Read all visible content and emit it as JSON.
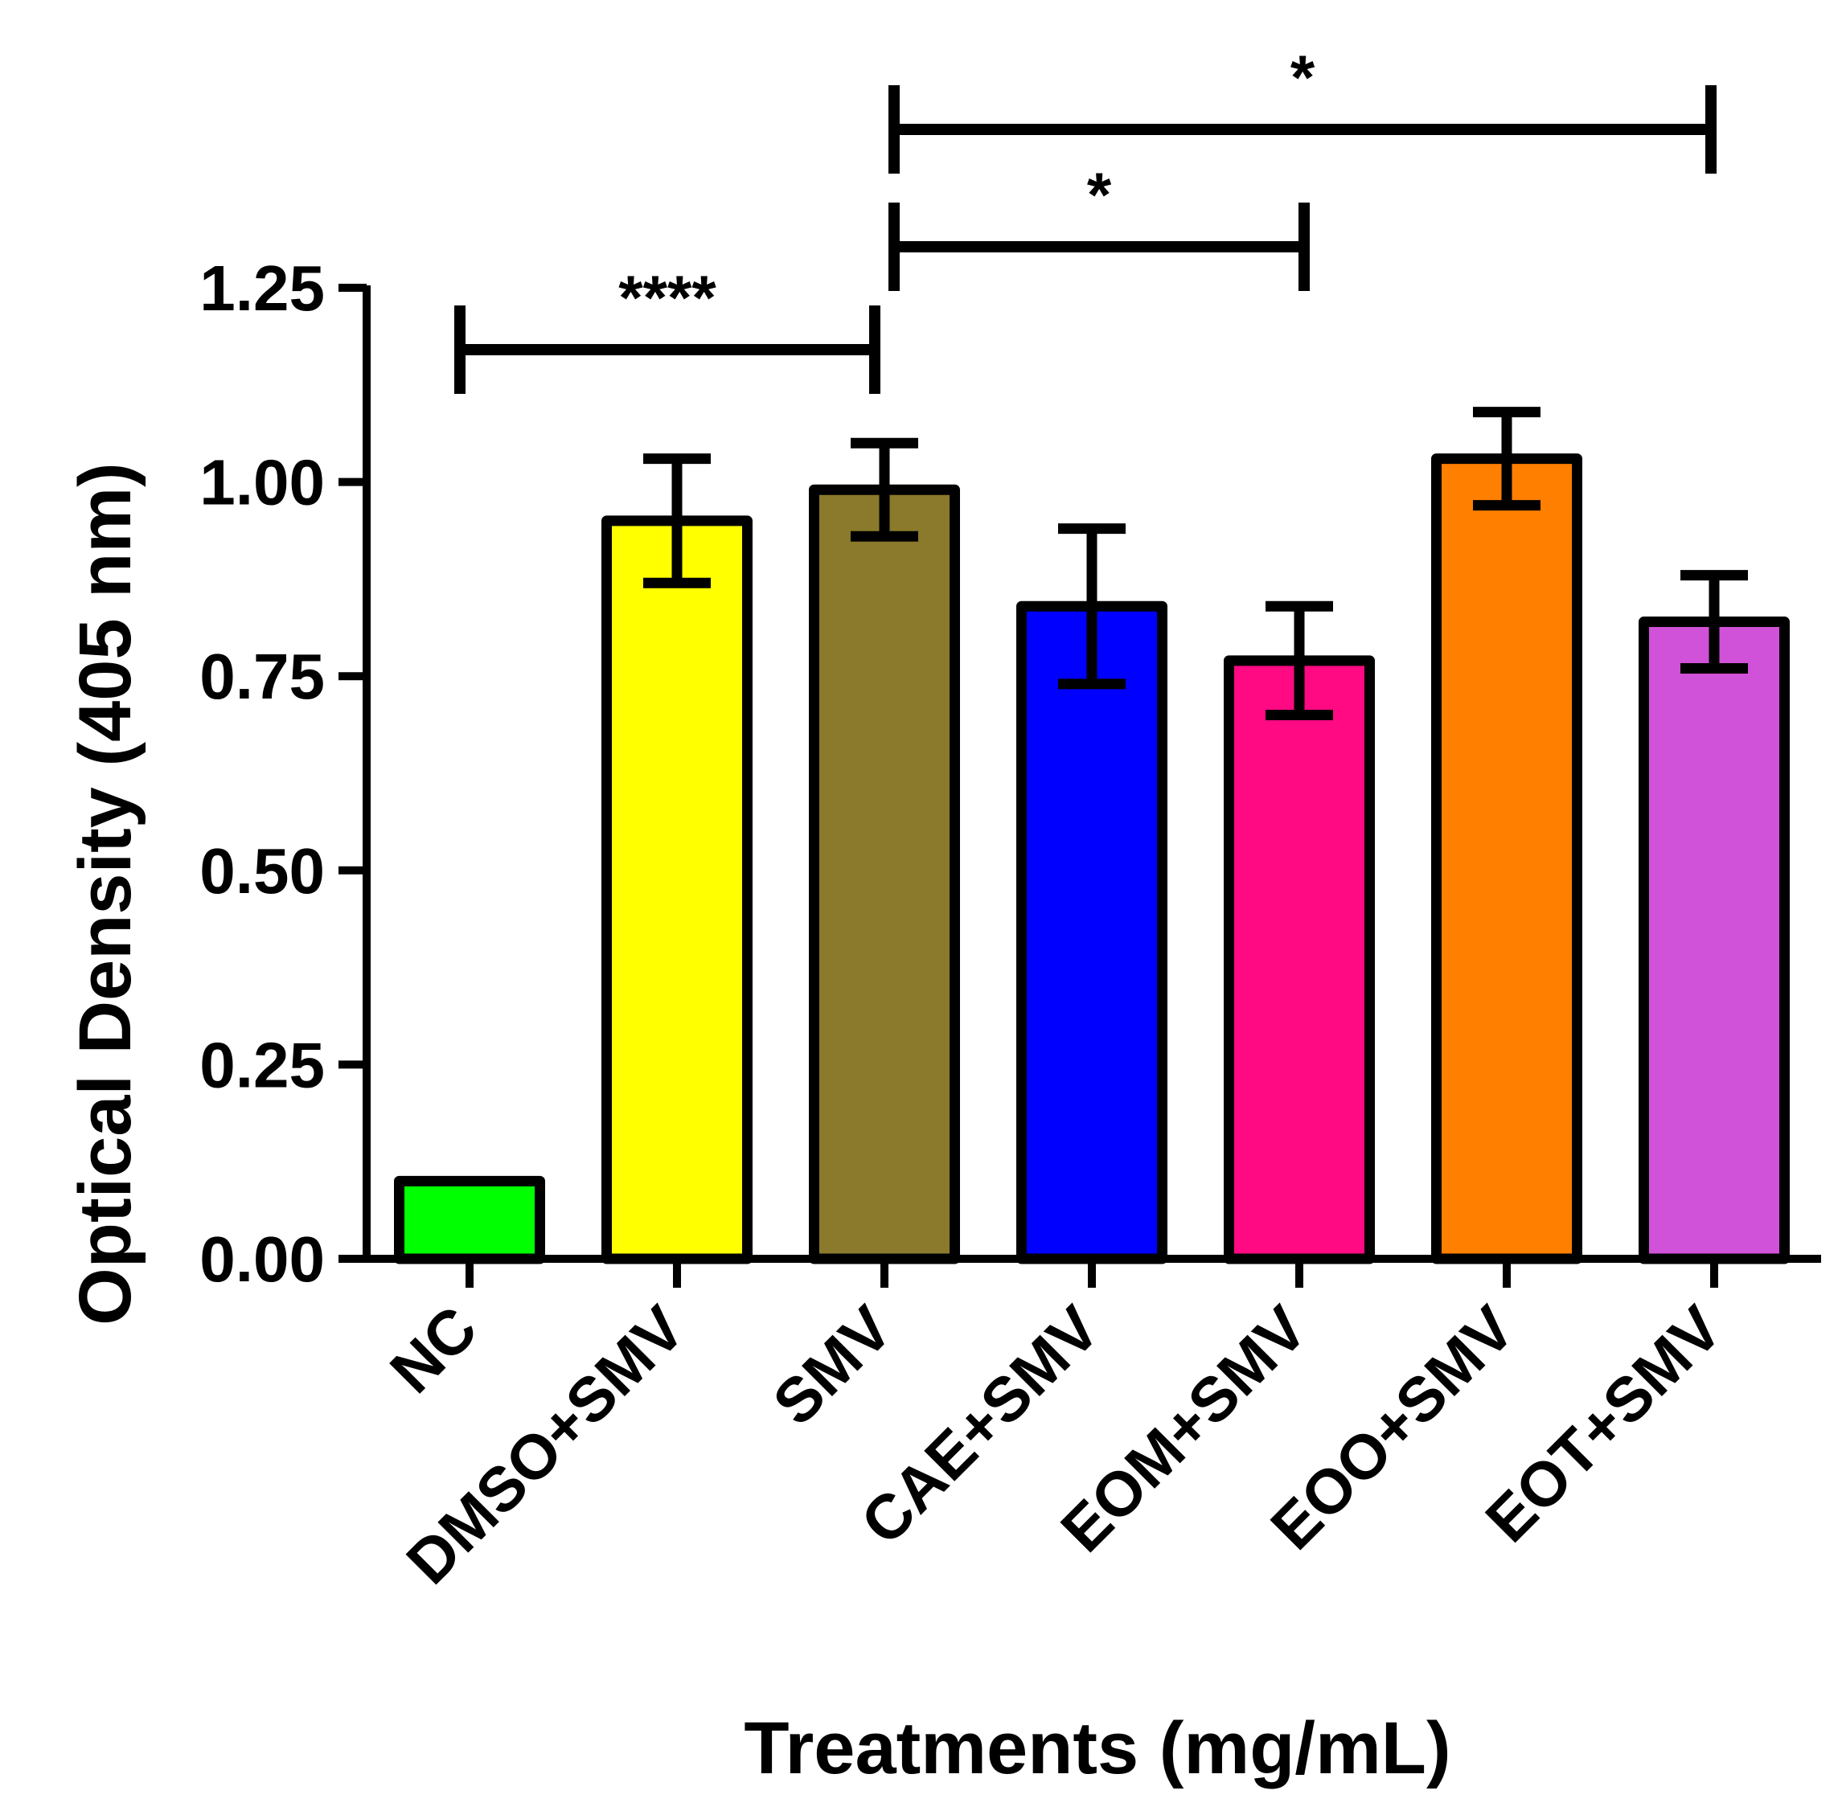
{
  "chart_data": {
    "type": "bar",
    "title": "",
    "xlabel": "Treatments (mg/mL)",
    "ylabel": "Optical Density (405 nm)",
    "ylim": [
      0,
      1.25
    ],
    "yticks": [
      "0.00",
      "0.25",
      "0.50",
      "0.75",
      "1.00",
      "1.25"
    ],
    "categories": [
      "NC",
      "DMSO+SMV",
      "SMV",
      "CAE+SMV",
      "EOM+SMV",
      "EOO+SMV",
      "EOT+SMV"
    ],
    "values": [
      0.1,
      0.95,
      0.99,
      0.84,
      0.77,
      1.03,
      0.82
    ],
    "error": [
      0.0,
      0.08,
      0.06,
      0.1,
      0.07,
      0.06,
      0.06
    ],
    "colors": [
      "#00ff00",
      "#ffff00",
      "#8b7a2b",
      "#0000ff",
      "#ff0a82",
      "#ff7f00",
      "#d052d8"
    ],
    "significance": [
      {
        "from": 0,
        "to": 2,
        "label": "****"
      },
      {
        "from": 2,
        "to": 4,
        "label": "*"
      },
      {
        "from": 2,
        "to": 6,
        "label": "*"
      }
    ]
  }
}
